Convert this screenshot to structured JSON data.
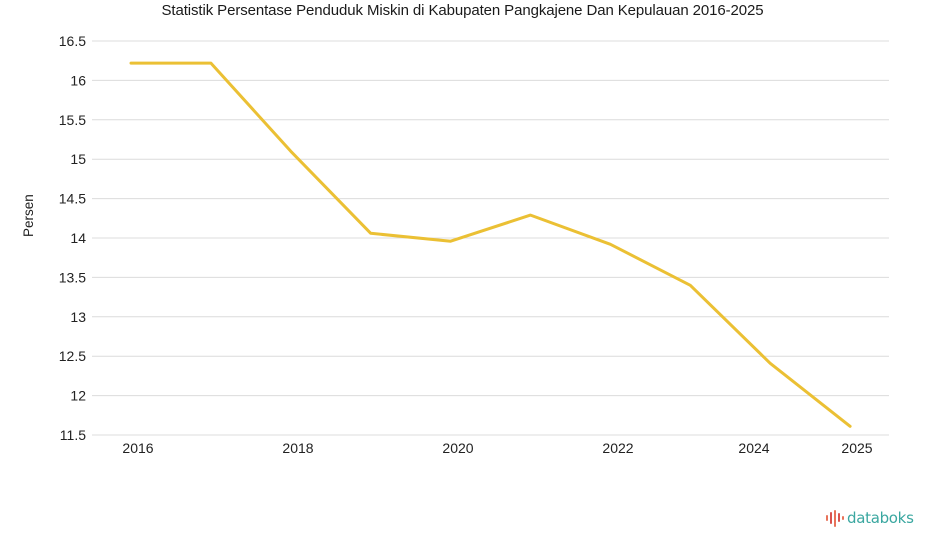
{
  "title": "Statistik Persentase Penduduk Miskin di Kabupaten Pangkajene Dan Kepulauan 2016-2025",
  "y_axis_label": "Persen",
  "brand": {
    "name": "databoks",
    "icon": "bar-wave-icon",
    "text_color": "#3aa7a0",
    "icon_color": "#e8735a"
  },
  "colors": {
    "line": "#ebc034",
    "grid": "#dcdcdc"
  },
  "y_ticks": [
    "16.5",
    "16",
    "15.5",
    "15",
    "14.5",
    "14",
    "13.5",
    "13",
    "12.5",
    "12",
    "11.5"
  ],
  "x_ticks": [
    "2016",
    "2018",
    "2020",
    "2022",
    "2024",
    "2025"
  ],
  "chart_data": {
    "type": "line",
    "title": "Statistik Persentase Penduduk Miskin di Kabupaten Pangkajene Dan Kepulauan 2016-2025",
    "xlabel": "",
    "ylabel": "Persen",
    "x": [
      2016,
      2017,
      2018,
      2019,
      2020,
      2021,
      2022,
      2023,
      2024,
      2025
    ],
    "series": [
      {
        "name": "Persentase Penduduk Miskin",
        "values": [
          16.22,
          16.22,
          15.1,
          14.06,
          13.96,
          14.29,
          13.92,
          13.4,
          12.41,
          11.61
        ]
      }
    ],
    "ylim": [
      11.5,
      16.5
    ],
    "y_tick_step": 0.5,
    "grid": true,
    "legend": "none"
  }
}
